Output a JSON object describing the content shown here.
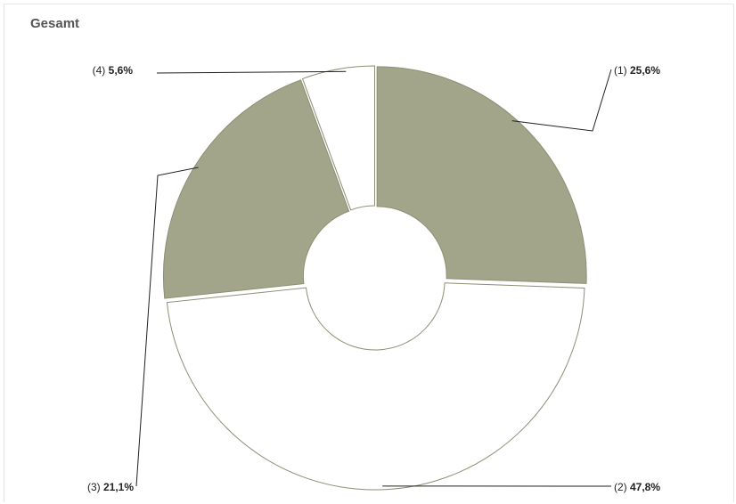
{
  "chart_data": {
    "type": "pie",
    "variant": "donut",
    "title": "Gesamt",
    "slices": [
      {
        "index": "(1)",
        "value": 25.6,
        "label": "25,6%",
        "color": "#a2a58a"
      },
      {
        "index": "(2)",
        "value": 47.8,
        "label": "47,8%",
        "color": "#ffffff"
      },
      {
        "index": "(3)",
        "value": 21.1,
        "label": "21,1%",
        "color": "#a2a58a"
      },
      {
        "index": "(4)",
        "value": 5.6,
        "label": "5,6%",
        "color": "#ffffff"
      }
    ],
    "stroke_color": "#8c8f73",
    "legend": "none"
  }
}
